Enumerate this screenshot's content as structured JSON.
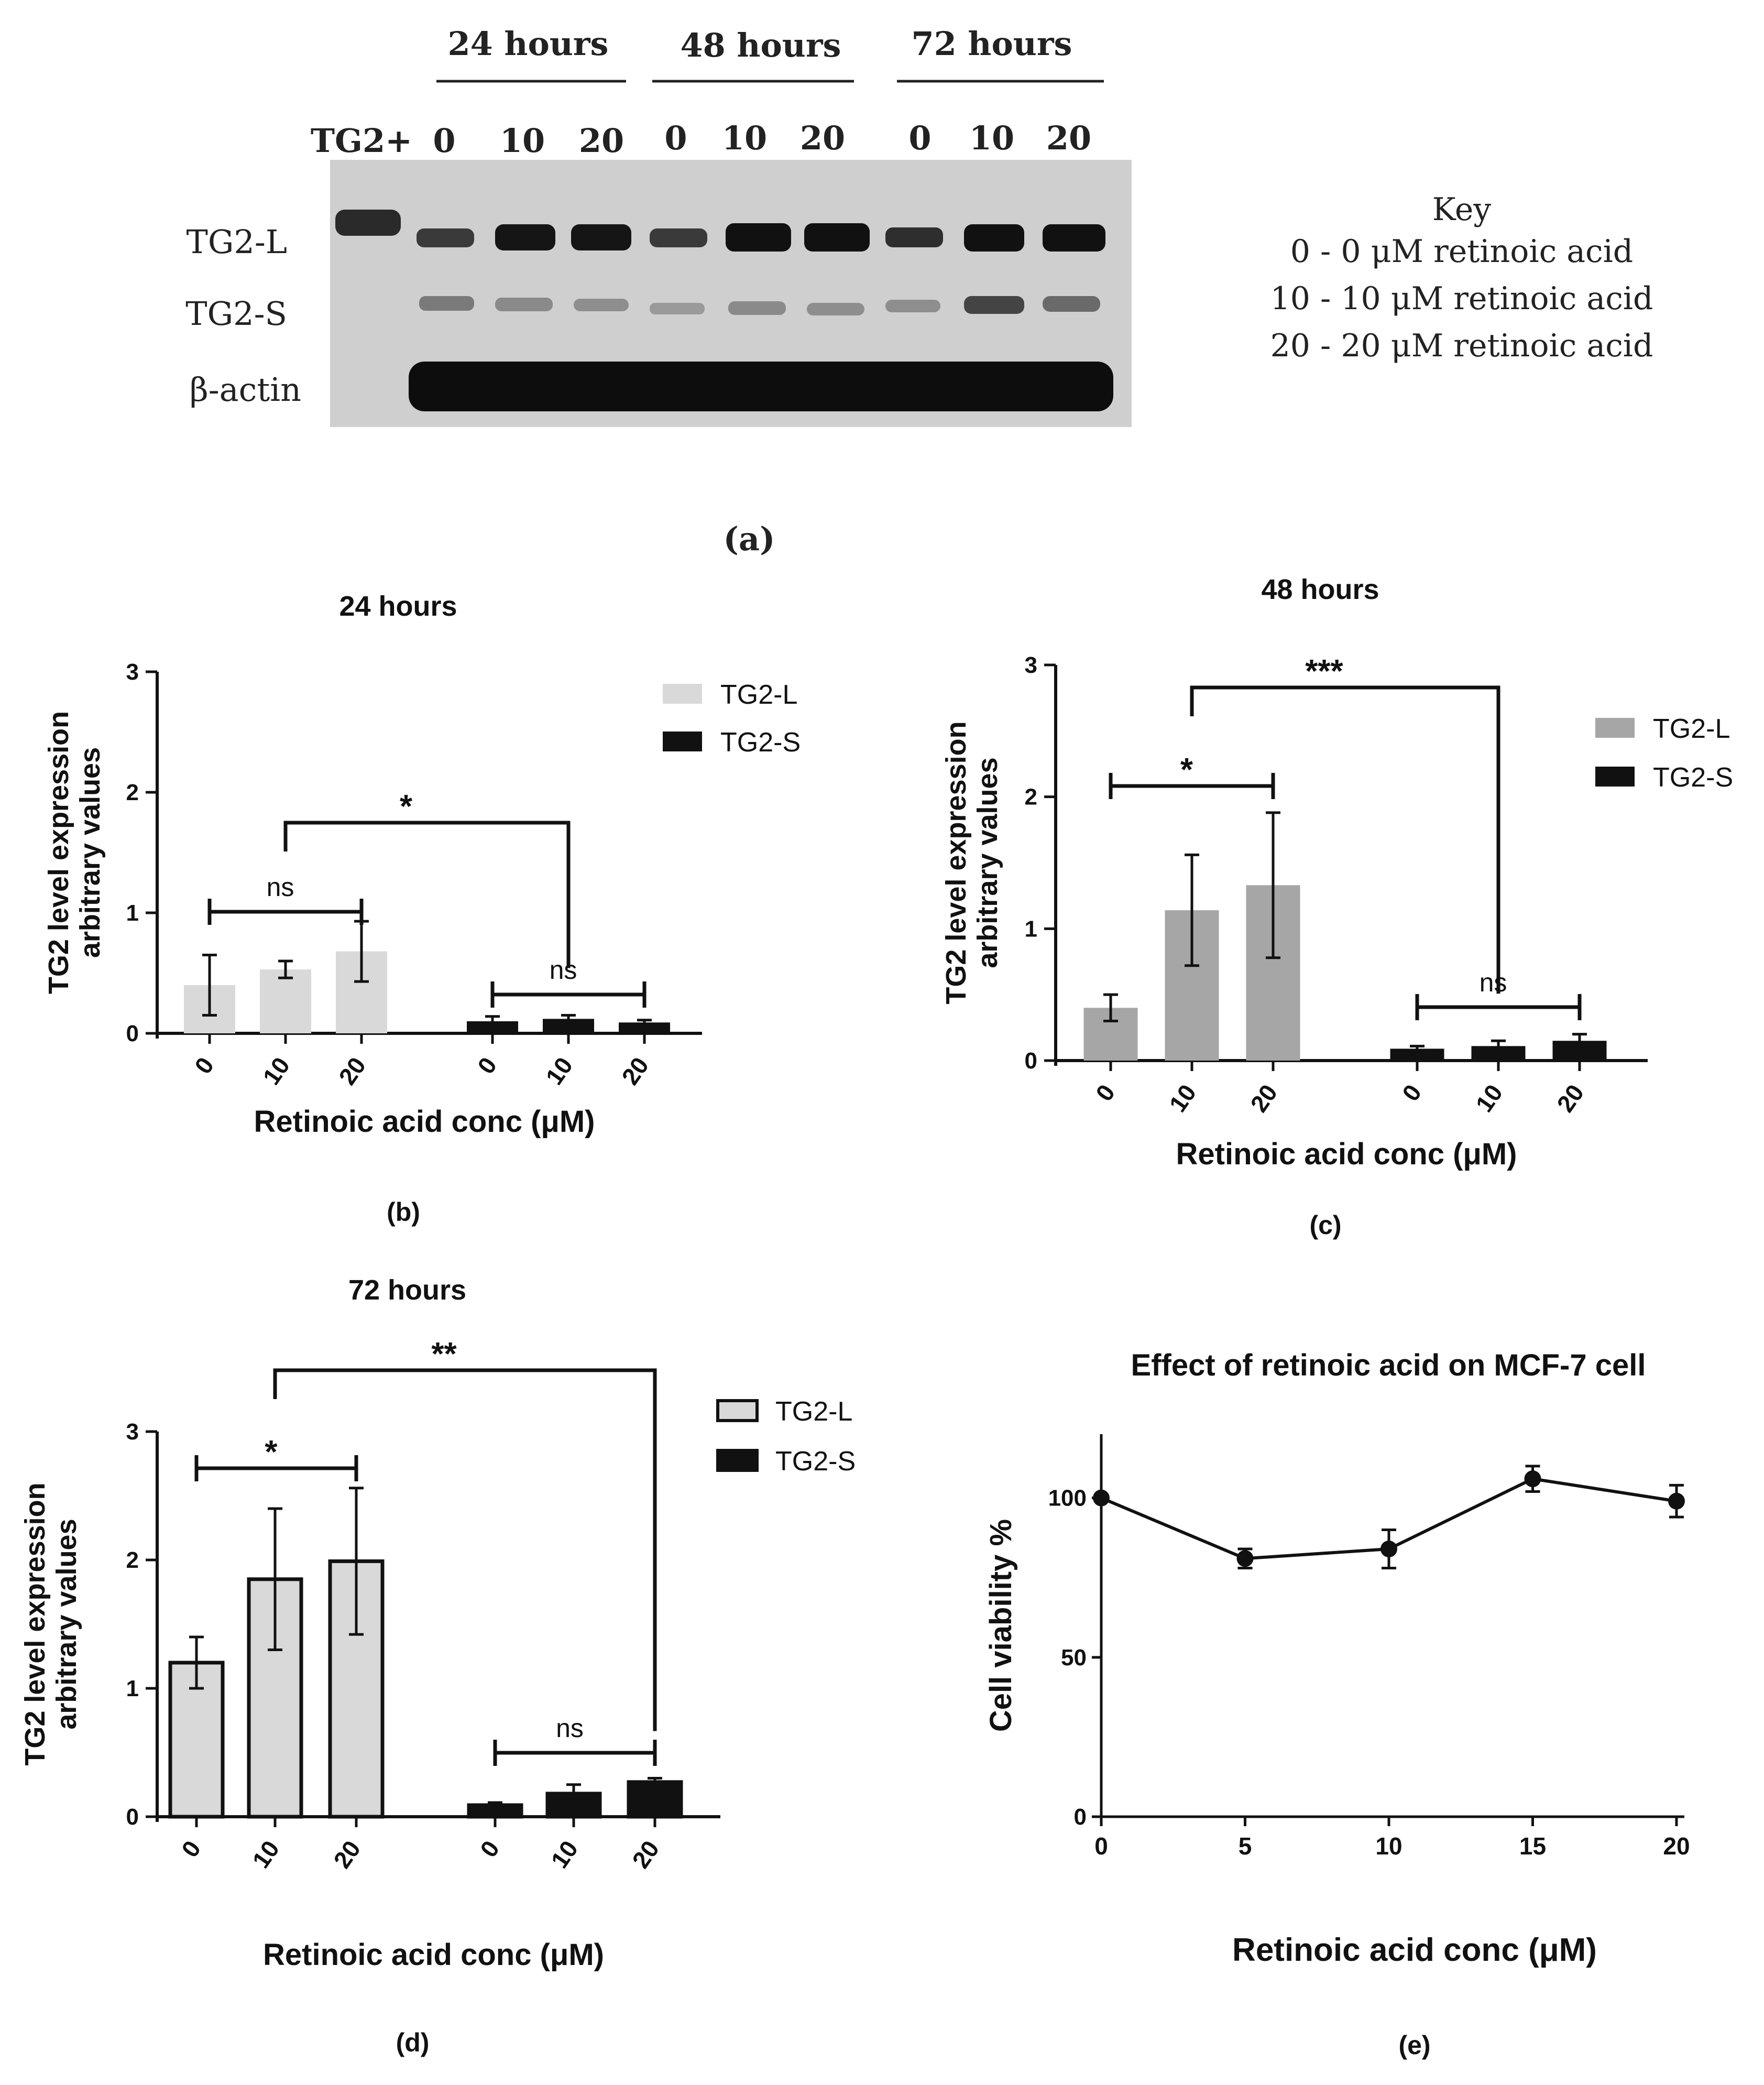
{
  "blot": {
    "time_headers": [
      "24 hours",
      "48 hours",
      "72 hours"
    ],
    "lane_labels": [
      "TG2+",
      "0",
      "10",
      "20",
      "0",
      "10",
      "20",
      "0",
      "10",
      "20"
    ],
    "band_labels": [
      "TG2-L",
      "TG2-S",
      "β-actin"
    ],
    "key_title": "Key",
    "key_lines": [
      "0 - 0 μM  retinoic acid",
      "10 - 10 μM retinoic acid",
      "20 - 20 μM  retinoic acid"
    ],
    "panel_label": "(a)"
  },
  "chart_data": [
    {
      "type": "bar",
      "panel_label": "(b)",
      "title": "24 hours",
      "ylabel_line1": "TG2 level expression",
      "ylabel_line2": "arbitrary values",
      "xlabel": "Retinoic acid conc (μM)",
      "ylim": [
        0,
        3
      ],
      "yticks": [
        "0",
        "1",
        "2",
        "3"
      ],
      "categories": [
        "0",
        "10",
        "20"
      ],
      "colors": {
        "TG2-L": "#d9d9d9",
        "TG2-S": "#111111"
      },
      "bordered_bars": false,
      "series": [
        {
          "name": "TG2-L",
          "values": [
            0.4,
            0.53,
            0.68
          ],
          "errors": [
            0.25,
            0.07,
            0.25
          ]
        },
        {
          "name": "TG2-S",
          "values": [
            0.1,
            0.12,
            0.09
          ],
          "errors": [
            0.04,
            0.03,
            0.02
          ]
        }
      ],
      "annotations": [
        {
          "label": "ns",
          "from": "TG2-L 0",
          "to": "TG2-L 20"
        },
        {
          "label": "*",
          "from": "TG2-L 10",
          "to": "TG2-S 10"
        },
        {
          "label": "ns",
          "from": "TG2-S 0",
          "to": "TG2-S 20"
        }
      ]
    },
    {
      "type": "bar",
      "panel_label": "(c)",
      "title": "48 hours",
      "ylabel_line1": "TG2 level expression",
      "ylabel_line2": "arbitrary values",
      "xlabel": "Retinoic acid conc (μM)",
      "ylim": [
        0,
        3
      ],
      "yticks": [
        "0",
        "1",
        "2",
        "3"
      ],
      "categories": [
        "0",
        "10",
        "20"
      ],
      "colors": {
        "TG2-L": "#a6a6a6",
        "TG2-S": "#111111"
      },
      "bordered_bars": false,
      "series": [
        {
          "name": "TG2-L",
          "values": [
            0.4,
            1.14,
            1.33
          ],
          "errors": [
            0.1,
            0.42,
            0.55
          ]
        },
        {
          "name": "TG2-S",
          "values": [
            0.09,
            0.11,
            0.15
          ],
          "errors": [
            0.02,
            0.04,
            0.05
          ]
        }
      ],
      "annotations": [
        {
          "label": "*",
          "from": "TG2-L 0",
          "to": "TG2-L 20"
        },
        {
          "label": "***",
          "from": "TG2-L 10",
          "to": "TG2-S 10"
        },
        {
          "label": "ns",
          "from": "TG2-S 0",
          "to": "TG2-S 20"
        }
      ]
    },
    {
      "type": "bar",
      "panel_label": "(d)",
      "title": "72 hours",
      "ylabel_line1": "TG2 level expression",
      "ylabel_line2": "arbitrary values",
      "xlabel": "Retinoic acid conc (μM)",
      "ylim": [
        0,
        3
      ],
      "yticks": [
        "0",
        "1",
        "2",
        "3"
      ],
      "categories": [
        "0",
        "10",
        "20"
      ],
      "colors": {
        "TG2-L": "#d9d9d9",
        "TG2-S": "#111111"
      },
      "bordered_bars": true,
      "series": [
        {
          "name": "TG2-L",
          "values": [
            1.2,
            1.85,
            1.99
          ],
          "errors": [
            0.2,
            0.55,
            0.57
          ]
        },
        {
          "name": "TG2-S",
          "values": [
            0.09,
            0.18,
            0.27
          ],
          "errors": [
            0.02,
            0.07,
            0.03
          ]
        }
      ],
      "annotations": [
        {
          "label": "*",
          "from": "TG2-L 0",
          "to": "TG2-L 20"
        },
        {
          "label": "**",
          "from": "TG2-L 10",
          "to": "TG2-S 20"
        },
        {
          "label": "ns",
          "from": "TG2-S 0",
          "to": "TG2-S 20"
        }
      ]
    },
    {
      "type": "line",
      "panel_label": "(e)",
      "title": "Effect of retinoic acid on MCF-7 cell",
      "ylabel": "Cell viability %",
      "xlabel": "Retinoic acid conc (μM)",
      "xlim": [
        0,
        20
      ],
      "ylim": [
        0,
        120
      ],
      "xticks": [
        "0",
        "5",
        "10",
        "15",
        "20"
      ],
      "yticks": [
        "0",
        "50",
        "100"
      ],
      "x": [
        0,
        5,
        10,
        15,
        20
      ],
      "values": [
        100,
        81,
        84,
        106,
        99
      ],
      "errors": [
        0,
        3,
        6,
        4,
        5
      ],
      "color": "#111111"
    }
  ]
}
